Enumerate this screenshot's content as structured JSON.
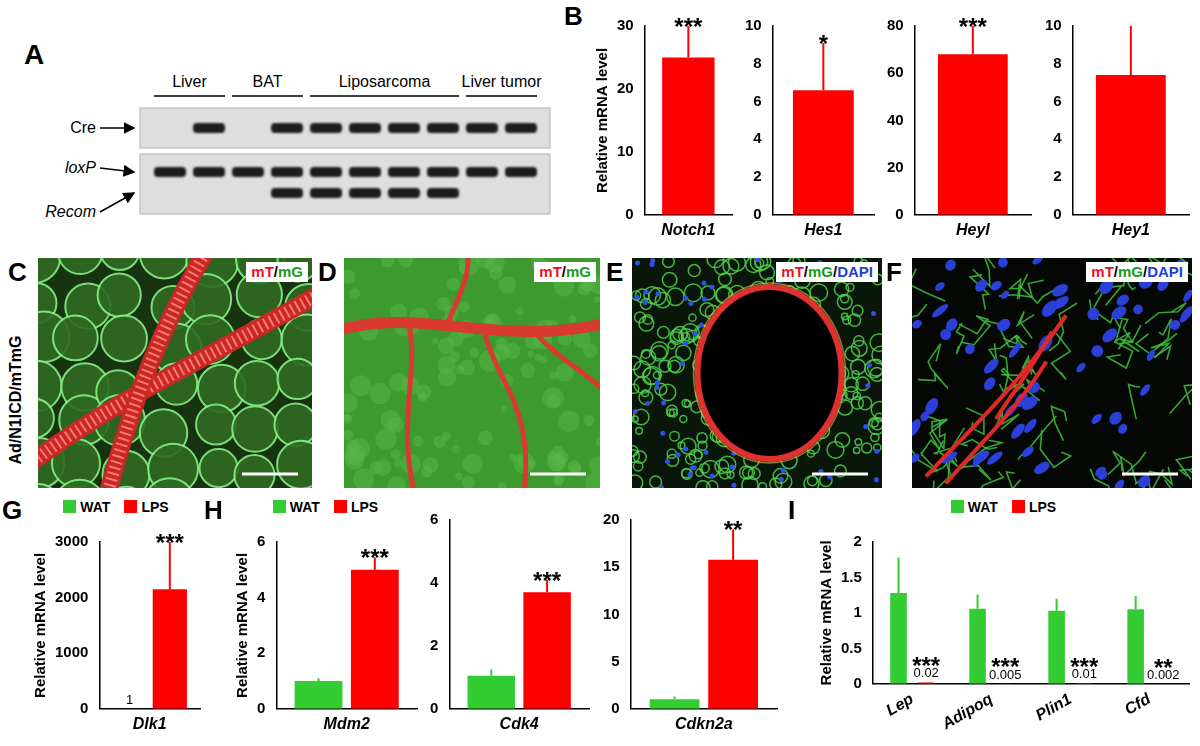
{
  "chart_data": [
    {
      "type": "bar",
      "panel": "B",
      "categories": [
        "Notch1"
      ],
      "values": [
        25
      ],
      "errors": [
        5
      ],
      "color": "#ff0000",
      "ylim": [
        0,
        30
      ],
      "yticks": [
        0,
        10,
        20,
        30
      ],
      "y_label": "Relative mRNA level",
      "annotations": [
        "***"
      ],
      "grid": false
    },
    {
      "type": "bar",
      "categories": [
        "Hes1"
      ],
      "values": [
        6.6
      ],
      "errors": [
        2.5
      ],
      "color": "#ff0000",
      "ylim": [
        0,
        10
      ],
      "yticks": [
        0,
        2,
        4,
        6,
        8,
        10
      ],
      "annotations": [
        "*"
      ],
      "grid": false
    },
    {
      "type": "bar",
      "categories": [
        "Heyl"
      ],
      "values": [
        68
      ],
      "errors": [
        12
      ],
      "color": "#ff0000",
      "ylim": [
        0,
        80
      ],
      "yticks": [
        0,
        20,
        40,
        60,
        80
      ],
      "annotations": [
        "***"
      ],
      "grid": false
    },
    {
      "type": "bar",
      "categories": [
        "Hey1"
      ],
      "values": [
        7.4
      ],
      "errors": [
        2.6
      ],
      "color": "#ff0000",
      "ylim": [
        0,
        10
      ],
      "yticks": [
        0,
        2,
        4,
        6,
        8,
        10
      ],
      "grid": false
    },
    {
      "type": "bar",
      "panel": "G",
      "categories": [
        "Dlk1"
      ],
      "series": [
        {
          "name": "WAT",
          "color": "#33cc33",
          "values": [
            1
          ],
          "data_labels": true
        },
        {
          "name": "LPS",
          "color": "#ff0000",
          "values": [
            2150
          ],
          "errors": [
            850
          ]
        }
      ],
      "ylim": [
        0,
        3000
      ],
      "yticks": [
        0,
        1000,
        2000,
        3000
      ],
      "y_label": "Relative mRNA level",
      "annotations": [
        "***"
      ],
      "legend": "top",
      "grid": false
    },
    {
      "type": "bar",
      "panel": "H",
      "categories": [
        "Mdm2"
      ],
      "series": [
        {
          "name": "WAT",
          "color": "#33cc33",
          "values": [
            1.0
          ],
          "errors": [
            0.1
          ]
        },
        {
          "name": "LPS",
          "color": "#ff0000",
          "values": [
            5.0
          ],
          "errors": [
            0.45
          ]
        }
      ],
      "ylim": [
        0,
        6
      ],
      "yticks": [
        0,
        2,
        4,
        6
      ],
      "y_label": "Relative mRNA level",
      "annotations": [
        "***"
      ],
      "legend": "top",
      "grid": false
    },
    {
      "type": "bar",
      "categories": [
        "Cdk4"
      ],
      "series": [
        {
          "name": "WAT",
          "color": "#33cc33",
          "values": [
            1.05
          ],
          "errors": [
            0.2
          ]
        },
        {
          "name": "LPS",
          "color": "#ff0000",
          "values": [
            3.7
          ],
          "errors": [
            0.4
          ]
        }
      ],
      "ylim": [
        0,
        6
      ],
      "yticks": [
        0,
        2,
        4,
        6
      ],
      "annotations": [
        "***"
      ],
      "grid": false
    },
    {
      "type": "bar",
      "categories": [
        "Cdkn2a"
      ],
      "series": [
        {
          "name": "WAT",
          "color": "#33cc33",
          "values": [
            1.0
          ],
          "errors": [
            0.3
          ]
        },
        {
          "name": "LPS",
          "color": "#ff0000",
          "values": [
            15.8
          ],
          "errors": [
            3.2
          ]
        }
      ],
      "ylim": [
        0,
        20
      ],
      "yticks": [
        0,
        5,
        10,
        15,
        20
      ],
      "annotations": [
        "**"
      ],
      "grid": false
    },
    {
      "type": "bar",
      "panel": "I",
      "categories": [
        "Lep",
        "Adipoq",
        "Plin1",
        "Cfd"
      ],
      "series": [
        {
          "name": "WAT",
          "color": "#33cc33",
          "values": [
            1.28,
            1.06,
            1.03,
            1.05
          ],
          "errors": [
            0.5,
            0.2,
            0.17,
            0.19
          ]
        },
        {
          "name": "LPS",
          "color": "#ff0000",
          "values": [
            0.02,
            0.005,
            0.01,
            0.002
          ],
          "data_labels": true
        }
      ],
      "ylim": [
        0,
        2
      ],
      "yticks": [
        0,
        0.5,
        1,
        1.5,
        2
      ],
      "y_label": "Relative mRNA level",
      "annotations": [
        "***",
        "***",
        "***",
        "**"
      ],
      "legend": "top",
      "grid": false
    }
  ],
  "gel": {
    "panel": "A",
    "rows": [
      "Cre",
      "loxP",
      "Recom"
    ],
    "groups": [
      {
        "label": "Liver",
        "lanes": [
          {
            "Cre": false,
            "loxP": true,
            "Recom": false
          },
          {
            "Cre": true,
            "loxP": true,
            "Recom": false
          }
        ]
      },
      {
        "label": "BAT",
        "lanes": [
          {
            "Cre": false,
            "loxP": true,
            "Recom": false
          },
          {
            "Cre": true,
            "loxP": true,
            "Recom": true
          }
        ]
      },
      {
        "label": "Liposarcoma",
        "lanes": [
          {
            "Cre": true,
            "loxP": true,
            "Recom": true
          },
          {
            "Cre": true,
            "loxP": true,
            "Recom": true
          },
          {
            "Cre": true,
            "loxP": true,
            "Recom": true
          },
          {
            "Cre": true,
            "loxP": true,
            "Recom": true
          }
        ]
      },
      {
        "label": "Liver tumor",
        "lanes": [
          {
            "Cre": true,
            "loxP": true,
            "Recom": false
          },
          {
            "Cre": true,
            "loxP": true,
            "Recom": false
          }
        ]
      }
    ]
  },
  "images": {
    "row_label": "Ad/N1ICD/mTmG",
    "panels": [
      {
        "panel": "C",
        "label_parts": [
          {
            "text": "mT",
            "color": "#e8102a"
          },
          {
            "text": "/",
            "color": "#000000"
          },
          {
            "text": "mG",
            "color": "#1a9a1a"
          }
        ]
      },
      {
        "panel": "D",
        "label_parts": [
          {
            "text": "mT",
            "color": "#e8102a"
          },
          {
            "text": "/",
            "color": "#000000"
          },
          {
            "text": "mG",
            "color": "#1a9a1a"
          }
        ]
      },
      {
        "panel": "E",
        "label_parts": [
          {
            "text": "mT",
            "color": "#e8102a"
          },
          {
            "text": "/",
            "color": "#000000"
          },
          {
            "text": "mG",
            "color": "#1a9a1a"
          },
          {
            "text": "/",
            "color": "#000000"
          },
          {
            "text": "DAPI",
            "color": "#1f3fd0"
          }
        ]
      },
      {
        "panel": "F",
        "label_parts": [
          {
            "text": "mT",
            "color": "#e8102a"
          },
          {
            "text": "/",
            "color": "#000000"
          },
          {
            "text": "mG",
            "color": "#1a9a1a"
          },
          {
            "text": "/",
            "color": "#000000"
          },
          {
            "text": "DAPI",
            "color": "#1f3fd0"
          }
        ]
      }
    ]
  }
}
